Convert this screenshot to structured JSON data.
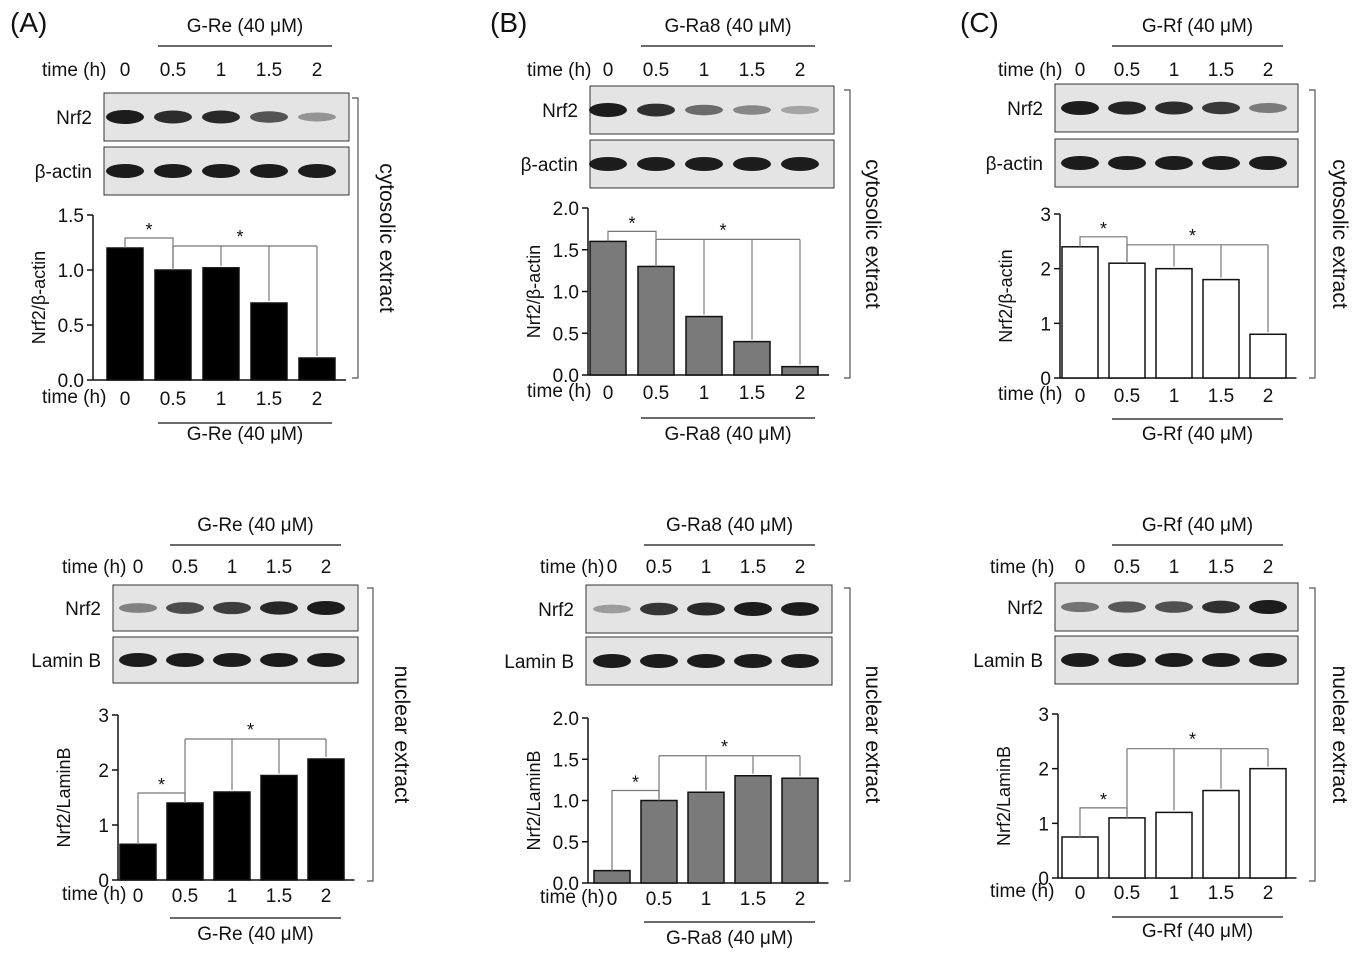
{
  "chart_data": [
    {
      "panel": "(A)",
      "fraction": "cytosolic extract",
      "type": "bar",
      "treatment": "G-Re (40 μM)",
      "xlabel": "time (h)",
      "categories": [
        "0",
        "0.5",
        "1",
        "1.5",
        "2"
      ],
      "ylabel": "Nrf2/β-actin",
      "ylim": [
        0,
        1.5
      ],
      "yticks": [
        "0.0",
        "0.5",
        "1.0",
        "1.5"
      ],
      "values": [
        1.2,
        1.0,
        1.02,
        0.7,
        0.2
      ],
      "bar_color": "#000000",
      "blot_rows": [
        "Nrf2",
        "β-actin"
      ],
      "significance": [
        "*",
        "*"
      ]
    },
    {
      "panel": "(A)",
      "fraction": "nuclear extract",
      "type": "bar",
      "treatment": "G-Re (40 μM)",
      "xlabel": "time (h)",
      "categories": [
        "0",
        "0.5",
        "1",
        "1.5",
        "2"
      ],
      "ylabel": "Nrf2/LaminB",
      "ylim": [
        0,
        3
      ],
      "yticks": [
        "0",
        "1",
        "2",
        "3"
      ],
      "values": [
        0.65,
        1.4,
        1.6,
        1.9,
        2.2
      ],
      "bar_color": "#000000",
      "blot_rows": [
        "Nrf2",
        "Lamin B"
      ],
      "significance": [
        "*",
        "*"
      ]
    },
    {
      "panel": "(B)",
      "fraction": "cytosolic extract",
      "type": "bar",
      "treatment": "G-Ra8 (40 μM)",
      "xlabel": "time (h)",
      "categories": [
        "0",
        "0.5",
        "1",
        "1.5",
        "2"
      ],
      "ylabel": "Nrf2/β-actin",
      "ylim": [
        0,
        2.0
      ],
      "yticks": [
        "0.0",
        "0.5",
        "1.0",
        "1.5",
        "2.0"
      ],
      "values": [
        1.6,
        1.3,
        0.7,
        0.4,
        0.1
      ],
      "bar_color": "#7a7a7a",
      "blot_rows": [
        "Nrf2",
        "β-actin"
      ],
      "significance": [
        "*",
        "*"
      ]
    },
    {
      "panel": "(B)",
      "fraction": "nuclear extract",
      "type": "bar",
      "treatment": "G-Ra8 (40 μM)",
      "xlabel": "time (h)",
      "categories": [
        "0",
        "0.5",
        "1",
        "1.5",
        "2"
      ],
      "ylabel": "Nrf2/LaminB",
      "ylim": [
        0,
        2.0
      ],
      "yticks": [
        "0.0",
        "0.5",
        "1.0",
        "1.5",
        "2.0"
      ],
      "values": [
        0.15,
        1.0,
        1.1,
        1.3,
        1.27
      ],
      "bar_color": "#7a7a7a",
      "blot_rows": [
        "Nrf2",
        "Lamin B"
      ],
      "significance": [
        "*",
        "*"
      ]
    },
    {
      "panel": "(C)",
      "fraction": "cytosolic extract",
      "type": "bar",
      "treatment": "G-Rf (40 μM)",
      "xlabel": "time (h)",
      "categories": [
        "0",
        "0.5",
        "1",
        "1.5",
        "2"
      ],
      "ylabel": "Nrf2/β-actin",
      "ylim": [
        0,
        3
      ],
      "yticks": [
        "0",
        "1",
        "2",
        "3"
      ],
      "values": [
        2.4,
        2.1,
        2.0,
        1.8,
        0.8
      ],
      "bar_color": "#ffffff",
      "blot_rows": [
        "Nrf2",
        "β-actin"
      ],
      "significance": [
        "*",
        "*"
      ]
    },
    {
      "panel": "(C)",
      "fraction": "nuclear extract",
      "type": "bar",
      "treatment": "G-Rf (40 μM)",
      "xlabel": "time (h)",
      "categories": [
        "0",
        "0.5",
        "1",
        "1.5",
        "2"
      ],
      "ylabel": "Nrf2/LaminB",
      "ylim": [
        0,
        3
      ],
      "yticks": [
        "0",
        "1",
        "2",
        "3"
      ],
      "values": [
        0.75,
        1.1,
        1.2,
        1.6,
        2.0
      ],
      "bar_color": "#ffffff",
      "blot_rows": [
        "Nrf2",
        "Lamin B"
      ],
      "significance": [
        "*",
        "*"
      ]
    }
  ]
}
